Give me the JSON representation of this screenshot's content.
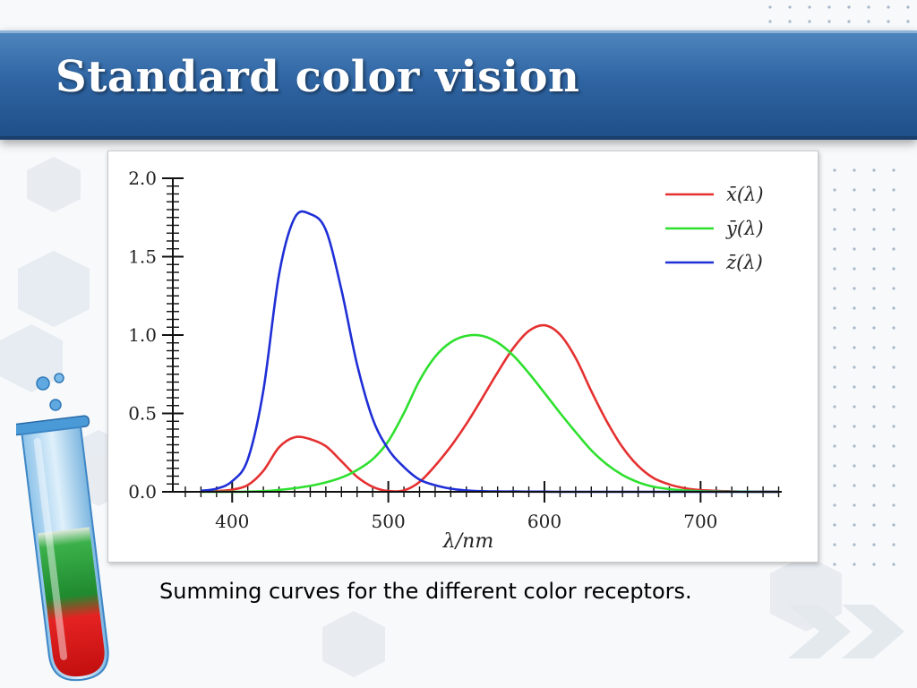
{
  "slide": {
    "title": "Standard color vision",
    "caption": "Summing curves for the different color receptors."
  },
  "colors": {
    "title_bar": "#2f65a3",
    "x_bar": "#e53030",
    "y_bar": "#2ee02e",
    "z_bar": "#1f2fd6"
  },
  "chart_data": {
    "type": "line",
    "xlabel": "λ/nm",
    "ylabel": "",
    "xlim": [
      362,
      752
    ],
    "ylim": [
      0,
      2.0
    ],
    "x_ticks": [
      400,
      500,
      600,
      700
    ],
    "y_ticks": [
      0.0,
      0.5,
      1.0,
      1.5,
      2.0
    ],
    "y_tick_labels": [
      "0.0",
      "0.5",
      "1.0",
      "1.5",
      "2.0"
    ],
    "legend_position": "top-right",
    "grid": false,
    "x": [
      380,
      390,
      400,
      410,
      420,
      430,
      440,
      450,
      460,
      470,
      480,
      490,
      500,
      510,
      520,
      530,
      540,
      550,
      560,
      570,
      580,
      590,
      600,
      610,
      620,
      630,
      640,
      650,
      660,
      670,
      680,
      690,
      700,
      710,
      720,
      730,
      740,
      750
    ],
    "series": [
      {
        "name": "x̄(λ)",
        "color": "#e53030",
        "values": [
          0.001,
          0.004,
          0.014,
          0.043,
          0.134,
          0.284,
          0.348,
          0.336,
          0.291,
          0.195,
          0.096,
          0.032,
          0.005,
          0.009,
          0.063,
          0.166,
          0.29,
          0.433,
          0.595,
          0.762,
          0.916,
          1.026,
          1.062,
          1.003,
          0.854,
          0.642,
          0.448,
          0.284,
          0.165,
          0.087,
          0.047,
          0.023,
          0.011,
          0.006,
          0.003,
          0.001,
          0.001,
          0.0
        ]
      },
      {
        "name": "ȳ(λ)",
        "color": "#2ee02e",
        "values": [
          0.0,
          0.0,
          0.0,
          0.001,
          0.004,
          0.012,
          0.023,
          0.038,
          0.06,
          0.091,
          0.139,
          0.208,
          0.323,
          0.503,
          0.71,
          0.862,
          0.954,
          0.995,
          0.995,
          0.952,
          0.87,
          0.757,
          0.631,
          0.503,
          0.381,
          0.265,
          0.175,
          0.107,
          0.061,
          0.032,
          0.017,
          0.008,
          0.004,
          0.002,
          0.001,
          0.001,
          0.0,
          0.0
        ]
      },
      {
        "name": "z̄(λ)",
        "color": "#1f2fd6",
        "values": [
          0.007,
          0.02,
          0.068,
          0.207,
          0.646,
          1.386,
          1.747,
          1.772,
          1.669,
          1.288,
          0.813,
          0.465,
          0.272,
          0.158,
          0.078,
          0.042,
          0.02,
          0.009,
          0.004,
          0.002,
          0.002,
          0.001,
          0.001,
          0.0,
          0.0,
          0.0,
          0.0,
          0.0,
          0.0,
          0.0,
          0.0,
          0.0,
          0.0,
          0.0,
          0.0,
          0.0,
          0.0,
          0.0
        ]
      }
    ]
  }
}
